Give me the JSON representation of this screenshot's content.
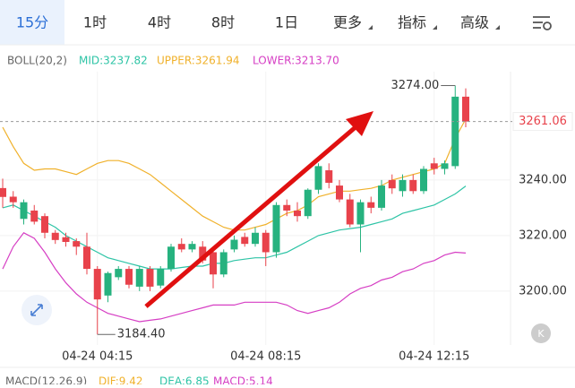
{
  "tabs": [
    "15分",
    "1时",
    "4时",
    "8时",
    "1日",
    "更多",
    "指标",
    "高级"
  ],
  "indicator": {
    "name": "BOLL(20,2)",
    "mid": "MID:3237.82",
    "upper": "UPPER:3261.94",
    "lower": "LOWER:3213.70"
  },
  "macd": {
    "name": "MACD(12,26,9)",
    "dif": "DIF:9.42",
    "dea": "DEA:6.85",
    "macd": "MACD:5.14"
  },
  "chart_data": {
    "type": "candlestick",
    "categories": [
      null,
      null,
      null,
      null,
      null,
      null,
      null,
      null,
      null,
      "04-24 04:15",
      null,
      null,
      null,
      null,
      null,
      null,
      null,
      null,
      null,
      null,
      null,
      null,
      null,
      null,
      null,
      "04-24 08:15",
      null,
      null,
      null,
      null,
      null,
      null,
      null,
      null,
      null,
      null,
      null,
      null,
      null,
      null,
      null,
      "04-24 12:15",
      null,
      null,
      null
    ],
    "open": [
      3237.1,
      3234,
      3226,
      3229,
      3227,
      3221,
      3219.4,
      3218,
      3216,
      3208,
      3198.4,
      3205,
      3208,
      3201.6,
      3208,
      3202,
      3208,
      3217,
      3215,
      3216,
      3214,
      3206,
      3215,
      3219.5,
      3217,
      3221,
      3214,
      3231,
      3229,
      3227,
      3236.5,
      3243.5,
      3238,
      3233,
      3224,
      3232,
      3230,
      3240,
      3236,
      3240,
      3236,
      3246,
      3244,
      3245,
      3270
    ],
    "high": [
      3240.5,
      3236,
      3233,
      3231,
      3228,
      3222,
      3221,
      3219,
      3221,
      3209,
      3207,
      3209,
      3209,
      3209,
      3209,
      3209,
      3217,
      3219,
      3218,
      3218,
      3215,
      3215,
      3220,
      3221,
      3223,
      3222,
      3232,
      3233,
      3232,
      3237,
      3246,
      3246,
      3240,
      3235,
      3233,
      3234,
      3240,
      3242,
      3242,
      3242,
      3245,
      3248,
      3247,
      3274,
      3273
    ],
    "low": [
      3230,
      3230,
      3224,
      3224,
      3219,
      3217,
      3216,
      3213,
      3206,
      3184.4,
      3196,
      3204,
      3201,
      3200,
      3200,
      3201,
      3207,
      3214,
      3214,
      3210,
      3201,
      3205,
      3214,
      3216,
      3216,
      3209,
      3212,
      3227,
      3225,
      3226,
      3235,
      3237,
      3232,
      3223,
      3214,
      3228,
      3229,
      3235,
      3234,
      3235,
      3235,
      3242,
      3242,
      3244,
      3259
    ],
    "close": [
      3233.9,
      3232,
      3232,
      3225,
      3221,
      3218.4,
      3217.7,
      3216,
      3208,
      3197,
      3206.5,
      3208,
      3202.3,
      3208,
      3201.6,
      3208,
      3216,
      3215,
      3217,
      3211,
      3206,
      3214,
      3218.5,
      3217,
      3221,
      3214,
      3231,
      3229,
      3227,
      3236.5,
      3245,
      3239,
      3233,
      3224,
      3232,
      3230,
      3238,
      3237,
      3240,
      3236,
      3244,
      3244,
      3246,
      3270,
      3261.06
    ],
    "up_color": "#26b27f",
    "down_color": "#e8424b",
    "series": [
      {
        "name": "UPPER",
        "color": "#f0b12b",
        "values": [
          3259,
          3252,
          3246,
          3243.5,
          3244,
          3244,
          3243,
          3242,
          3244,
          3246,
          3247,
          3247,
          3246,
          3244,
          3242,
          3239,
          3236,
          3233,
          3230,
          3227,
          3225,
          3223,
          3222,
          3222,
          3223,
          3224,
          3226,
          3228,
          3229,
          3231,
          3234,
          3235,
          3236,
          3236,
          3236.5,
          3237,
          3238,
          3240,
          3241,
          3242,
          3243,
          3244,
          3246,
          3255,
          3261.94
        ]
      },
      {
        "name": "MID",
        "color": "#2ec4a6",
        "values": [
          3230,
          3231,
          3229,
          3227,
          3225,
          3223,
          3220,
          3218,
          3216,
          3214,
          3212,
          3211,
          3210,
          3209,
          3208,
          3208,
          3208,
          3208.5,
          3209,
          3209,
          3210,
          3210,
          3211,
          3211.5,
          3212,
          3212,
          3213,
          3214,
          3216,
          3218,
          3220,
          3221,
          3222,
          3222.5,
          3223,
          3224,
          3225,
          3226,
          3228,
          3229,
          3230,
          3231,
          3233,
          3235,
          3237.82
        ]
      },
      {
        "name": "LOWER",
        "color": "#d63fc4",
        "values": [
          3208,
          3216,
          3221,
          3219,
          3214,
          3208,
          3203,
          3199,
          3196,
          3194,
          3192,
          3191,
          3190,
          3189,
          3189.5,
          3190,
          3191,
          3192,
          3193,
          3194,
          3195,
          3195,
          3195,
          3196,
          3196,
          3196,
          3196,
          3195,
          3193,
          3192,
          3193,
          3194,
          3196,
          3199,
          3201,
          3202,
          3204,
          3205,
          3207,
          3208,
          3210,
          3211,
          3213,
          3214,
          3213.7
        ]
      }
    ],
    "ylim": [
      3180.6,
      3279
    ],
    "yticks": [
      {
        "value": 3200,
        "label": "3200.00"
      },
      {
        "value": 3220,
        "label": "3220.00"
      },
      {
        "value": 3240,
        "label": "3240.00"
      }
    ],
    "grid": true,
    "annotations": [
      {
        "value": 3274,
        "label": "3274.00",
        "index": 43
      },
      {
        "value": 3184.4,
        "label": "3184.40",
        "index": 9
      }
    ],
    "last_price": {
      "value": 3261.06,
      "label": "3261.06"
    }
  }
}
